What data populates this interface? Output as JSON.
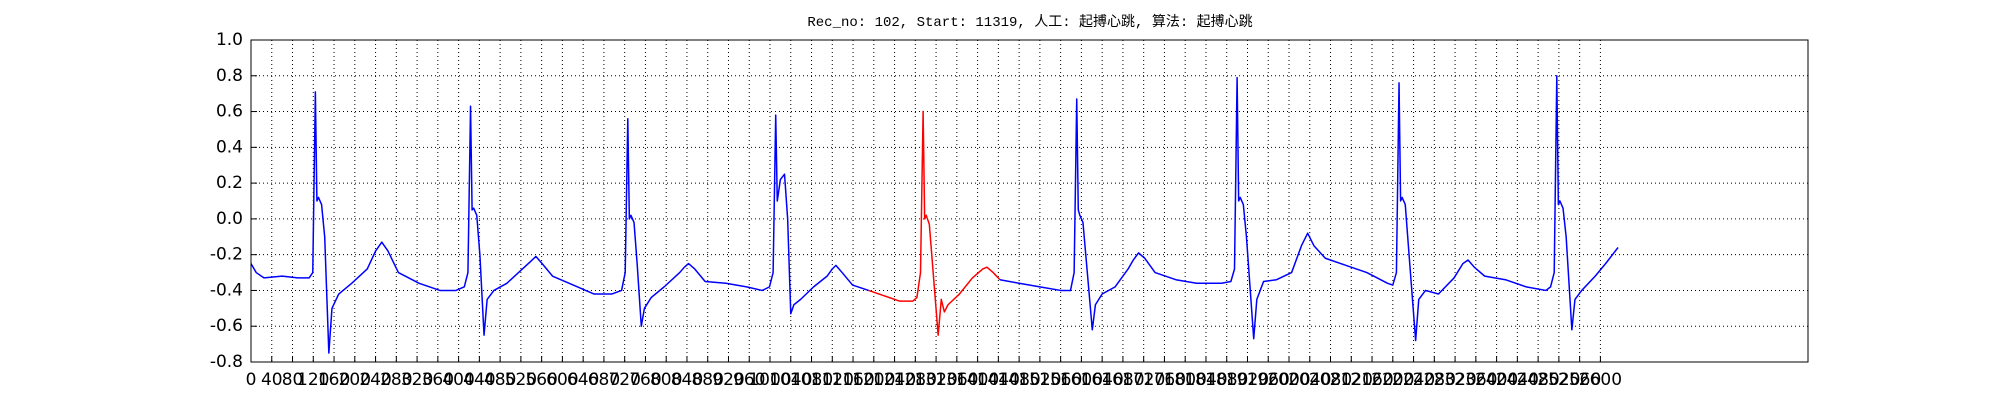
{
  "chart_data": {
    "type": "line",
    "title": "Rec_no: 102, Start: 11319, 人工: 起搏心跳, 算法: 起搏心跳",
    "xlim": [
      0,
      3000
    ],
    "ylim": [
      -0.8,
      1.0
    ],
    "xticks": [
      0,
      40,
      80,
      120,
      160,
      200,
      240,
      280,
      320,
      360,
      400,
      440,
      480,
      520,
      560,
      600,
      640,
      680,
      720,
      760,
      800,
      840,
      880,
      920,
      960,
      1000,
      1040,
      1080,
      1120,
      1160,
      1200,
      1240,
      1280,
      1320,
      1360,
      1400,
      1440,
      1480,
      1520,
      1560,
      1600,
      1640,
      1680,
      1720,
      1760,
      1800,
      1840,
      1880,
      1920,
      1960,
      2000,
      2040,
      2080,
      2120,
      2160,
      2200,
      2240,
      2280,
      2320,
      2360,
      2400,
      2440,
      2480,
      2520,
      2560,
      2600
    ],
    "yticks": [
      -0.8,
      -0.6,
      -0.4,
      -0.2,
      {
        "value": 0,
        "label": "0.0"
      },
      0.2,
      0.4,
      0.6,
      0.8,
      {
        "value": 1,
        "label": "1.0"
      }
    ],
    "grid": true,
    "series": [
      {
        "color": "#0000ff",
        "x": [
          0,
          10,
          25,
          60,
          90,
          112,
          119,
          124,
          127,
          130,
          136,
          142,
          150,
          156,
          169,
          194,
          224,
          240,
          252,
          264,
          284,
          324,
          364,
          395,
          411,
          418,
          423,
          426,
          429,
          435,
          441,
          449,
          455,
          468,
          493,
          523,
          538,
          549,
          561,
          581,
          621,
          661,
          695,
          714,
          721,
          726,
          729,
          732,
          738,
          744,
          752,
          758,
          771,
          796,
          826,
          835,
          843,
          855,
          875,
          915,
          955,
          985,
          999,
          1006,
          1011,
          1014,
          1020,
          1028,
          1034,
          1040,
          1046,
          1059,
          1084,
          1110,
          1120,
          1127,
          1139,
          1159,
          1190
        ],
        "values": [
          -0.25,
          -0.3,
          -0.33,
          -0.32,
          -0.33,
          -0.33,
          -0.3,
          0.71,
          0.1,
          0.12,
          0.08,
          -0.1,
          -0.75,
          -0.5,
          -0.42,
          -0.36,
          -0.28,
          -0.18,
          -0.13,
          -0.18,
          -0.3,
          -0.36,
          -0.4,
          -0.4,
          -0.38,
          -0.3,
          0.63,
          0.05,
          0.06,
          0.02,
          -0.2,
          -0.65,
          -0.45,
          -0.4,
          -0.36,
          -0.28,
          -0.24,
          -0.21,
          -0.25,
          -0.32,
          -0.37,
          -0.42,
          -0.42,
          -0.4,
          -0.3,
          0.56,
          0.0,
          0.02,
          -0.02,
          -0.25,
          -0.6,
          -0.5,
          -0.44,
          -0.38,
          -0.3,
          -0.27,
          -0.25,
          -0.28,
          -0.35,
          -0.36,
          -0.38,
          -0.4,
          -0.38,
          -0.3,
          0.58,
          0.1,
          0.22,
          0.25,
          0.0,
          -0.53,
          -0.48,
          -0.45,
          -0.38,
          -0.32,
          -0.28,
          -0.26,
          -0.3,
          -0.37,
          -0.4
        ]
      },
      {
        "color": "#ff0000",
        "x": [
          1190,
          1220,
          1250,
          1275,
          1283,
          1290,
          1295,
          1298,
          1301,
          1307,
          1313,
          1324,
          1330,
          1336,
          1343,
          1365,
          1390,
          1410,
          1418,
          1430,
          1443
        ],
        "values": [
          -0.4,
          -0.43,
          -0.46,
          -0.46,
          -0.44,
          -0.3,
          0.6,
          0.0,
          0.02,
          -0.03,
          -0.25,
          -0.65,
          -0.45,
          -0.52,
          -0.48,
          -0.42,
          -0.33,
          -0.28,
          -0.27,
          -0.3,
          -0.34
        ]
      },
      {
        "color": "#0000ff",
        "x": [
          1443,
          1480,
          1520,
          1560,
          1579,
          1586,
          1591,
          1594,
          1597,
          1603,
          1609,
          1621,
          1627,
          1640,
          1665,
          1690,
          1700,
          1710,
          1722,
          1742,
          1782,
          1822,
          1870,
          1888,
          1895,
          1900,
          1903,
          1906,
          1912,
          1918,
          1932,
          1938,
          1951,
          1976,
          2005,
          2024,
          2036,
          2048,
          2070,
          2110,
          2150,
          2190,
          2200,
          2207,
          2212,
          2215,
          2218,
          2224,
          2230,
          2244,
          2250,
          2263,
          2288,
          2318,
          2335,
          2345,
          2357,
          2377,
          2417,
          2457,
          2495,
          2504,
          2511,
          2516,
          2519,
          2522,
          2528,
          2534,
          2545,
          2551,
          2564,
          2590,
          2610,
          2634
        ],
        "values": [
          -0.34,
          -0.36,
          -0.38,
          -0.4,
          -0.4,
          -0.3,
          0.67,
          0.05,
          0.02,
          -0.02,
          -0.22,
          -0.62,
          -0.48,
          -0.42,
          -0.38,
          -0.28,
          -0.23,
          -0.19,
          -0.22,
          -0.3,
          -0.34,
          -0.36,
          -0.36,
          -0.35,
          -0.28,
          0.79,
          0.1,
          0.12,
          0.08,
          -0.1,
          -0.67,
          -0.45,
          -0.35,
          -0.34,
          -0.3,
          -0.15,
          -0.08,
          -0.15,
          -0.22,
          -0.26,
          -0.3,
          -0.36,
          -0.37,
          -0.3,
          0.76,
          0.1,
          0.12,
          0.08,
          -0.15,
          -0.68,
          -0.45,
          -0.4,
          -0.42,
          -0.33,
          -0.25,
          -0.23,
          -0.27,
          -0.32,
          -0.34,
          -0.38,
          -0.4,
          -0.38,
          -0.3,
          0.8,
          0.08,
          0.1,
          0.06,
          -0.1,
          -0.62,
          -0.45,
          -0.4,
          -0.32,
          -0.25,
          -0.16
        ]
      }
    ]
  }
}
